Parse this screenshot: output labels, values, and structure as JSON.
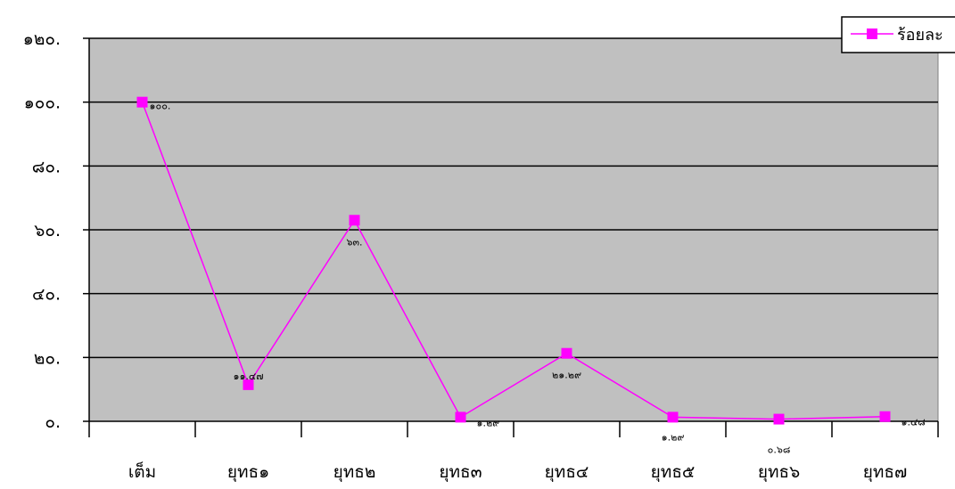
{
  "chart_data": {
    "type": "line",
    "categories": [
      "เต็ม",
      "ยุทธ๑",
      "ยุทธ๒",
      "ยุทธ๓",
      "ยุทธ๔",
      "ยุทธ๕",
      "ยุทธ๖",
      "ยุทธ๗"
    ],
    "series": [
      {
        "name": "ร้อยละ",
        "values": [
          100,
          11.47,
          63,
          1.29,
          21.29,
          1.29,
          0.68,
          1.48
        ],
        "data_labels": [
          "๑๐๐.",
          "๑๑.๔๗",
          "๖๓.",
          "๑.๒๙",
          "๒๑.๒๙",
          "๑.๒๙",
          "๐.๖๘",
          "๑.๔๘"
        ],
        "color": "#ff00ff"
      }
    ],
    "ylim": [
      0,
      120
    ],
    "y_ticks": [
      0,
      20,
      40,
      60,
      80,
      100,
      120
    ],
    "y_tick_labels": [
      "๐.",
      "๒๐.",
      "๔๐.",
      "๖๐.",
      "๘๐.",
      "๑๐๐.",
      "๑๒๐."
    ],
    "grid": true,
    "plot_background": "#c0c0c0",
    "legend_position": "top-right"
  }
}
